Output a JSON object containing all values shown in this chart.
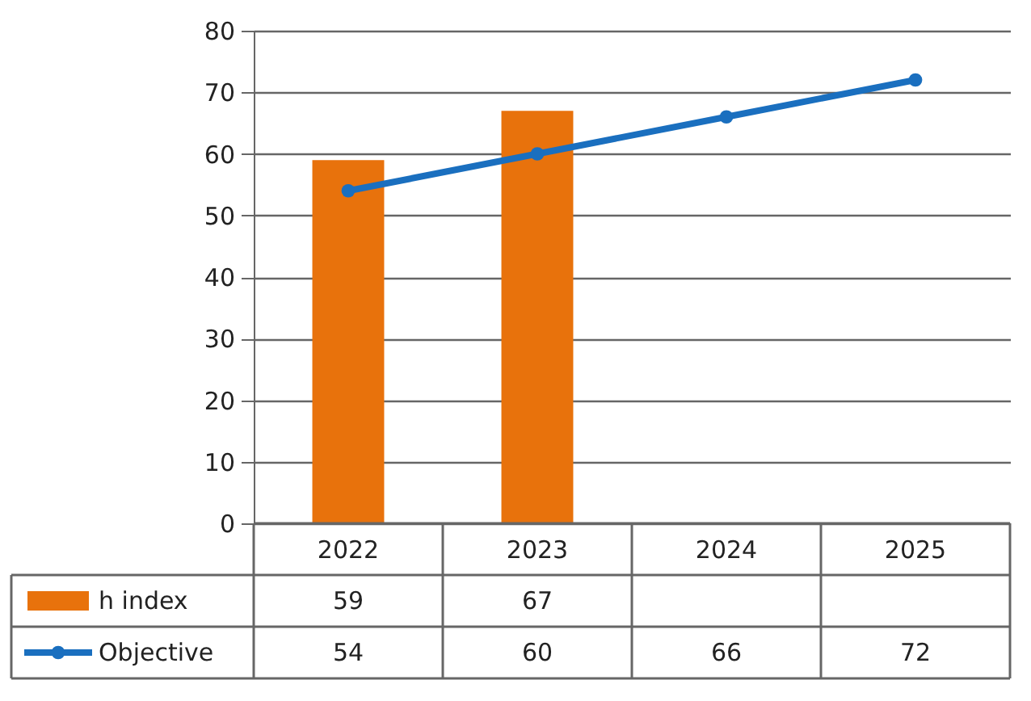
{
  "chart_data": {
    "type": "bar",
    "categories": [
      "2022",
      "2023",
      "2024",
      "2025"
    ],
    "series": [
      {
        "name": "h index",
        "color": "#e8720c",
        "values": [
          59,
          67,
          null,
          null
        ]
      },
      {
        "name": "Objective",
        "type": "line",
        "color": "#1a6fbf",
        "values": [
          54,
          60,
          66,
          72
        ]
      }
    ],
    "ylim": [
      0,
      80
    ],
    "yticks": [
      0,
      10,
      20,
      30,
      40,
      50,
      60,
      70,
      80
    ],
    "grid": "y",
    "legend": "bottom",
    "marker": "circle",
    "line_style": "solid",
    "data_labels": true
  }
}
